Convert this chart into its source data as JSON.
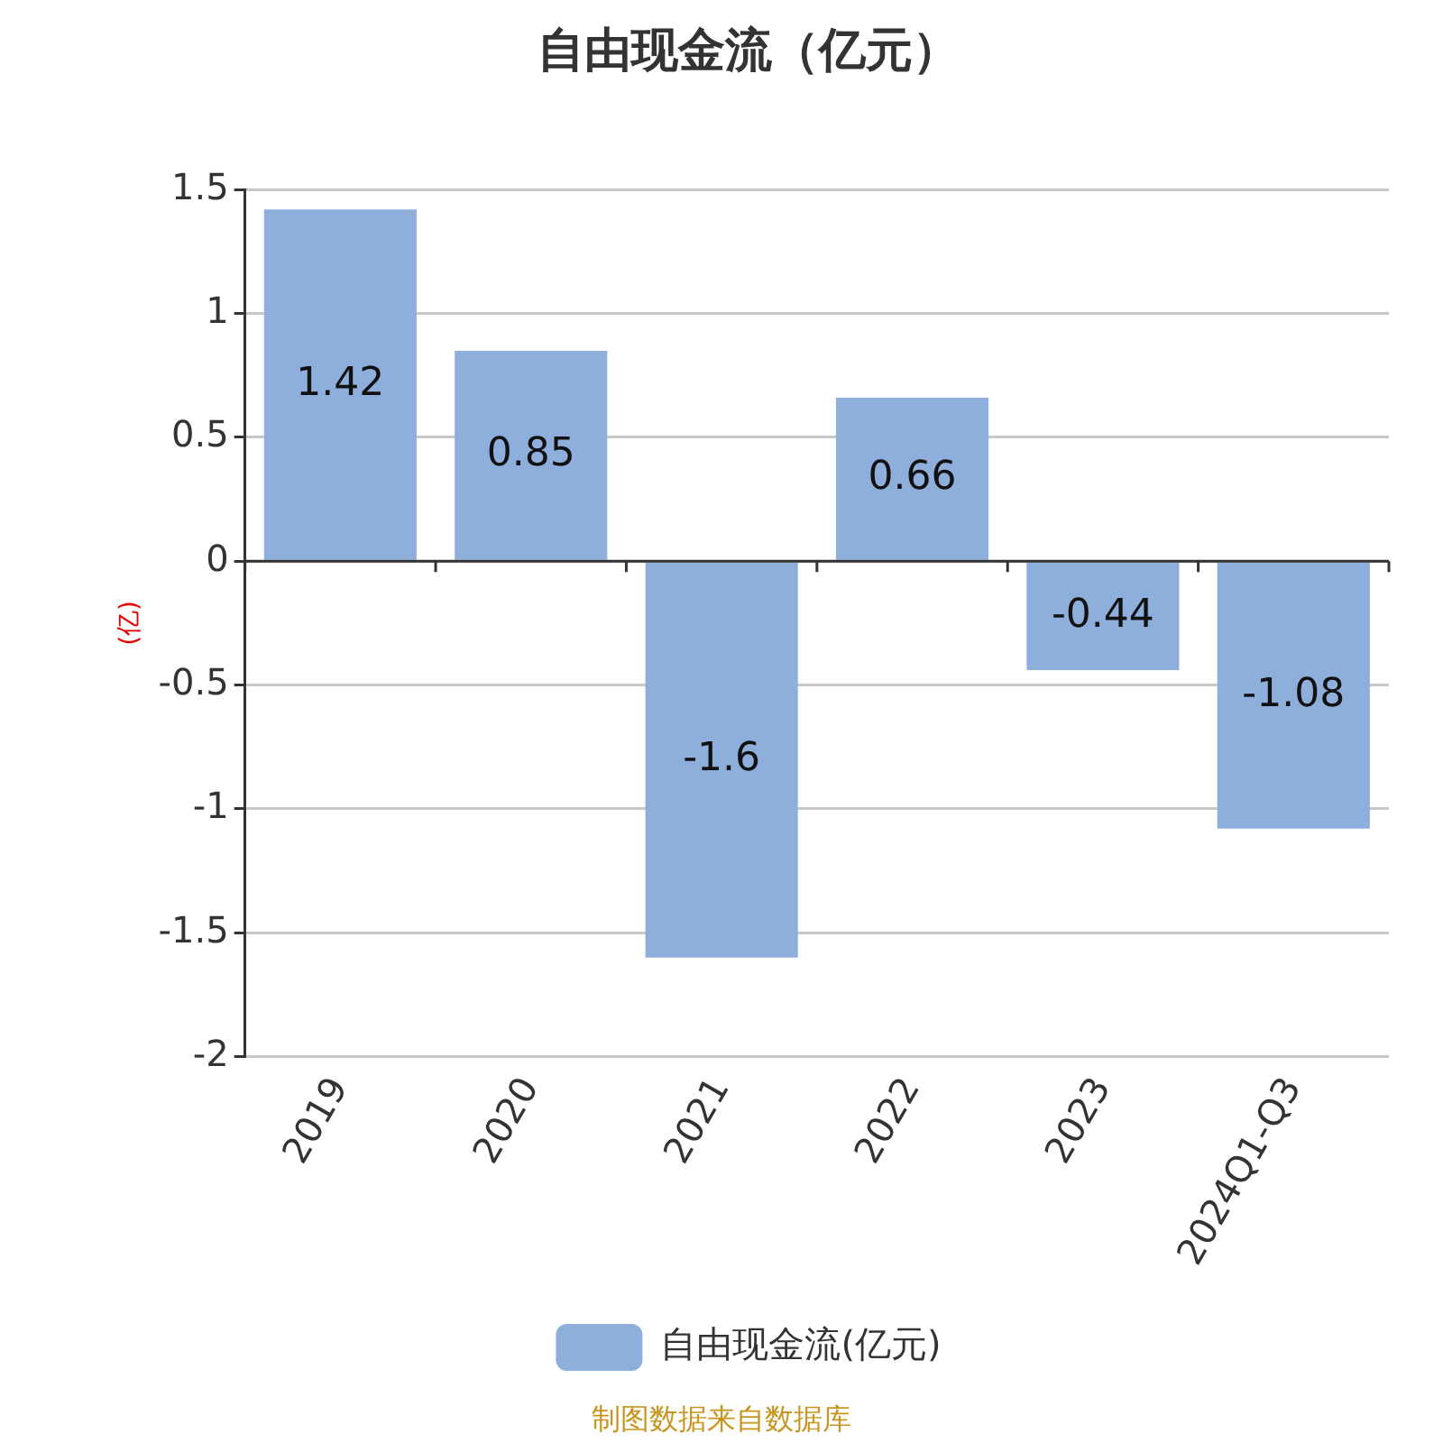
{
  "chart_data": {
    "type": "bar",
    "title": "自由现金流（亿元）",
    "ylabel": "(亿)",
    "categories": [
      "2019",
      "2020",
      "2021",
      "2022",
      "2023",
      "2024Q1-Q3"
    ],
    "series": [
      {
        "name": "自由现金流(亿元)",
        "color": "#8eaedb",
        "values": [
          1.42,
          0.85,
          -1.6,
          0.66,
          -0.44,
          -1.08
        ]
      }
    ],
    "ylim": [
      -2,
      1.5
    ],
    "yticks": [
      -2,
      -1.5,
      -1,
      -0.5,
      0,
      0.5,
      1,
      1.5
    ],
    "grid": "y",
    "legend": "bottom",
    "data_labels": true,
    "annotations": [
      "制图数据来自数据库"
    ]
  }
}
